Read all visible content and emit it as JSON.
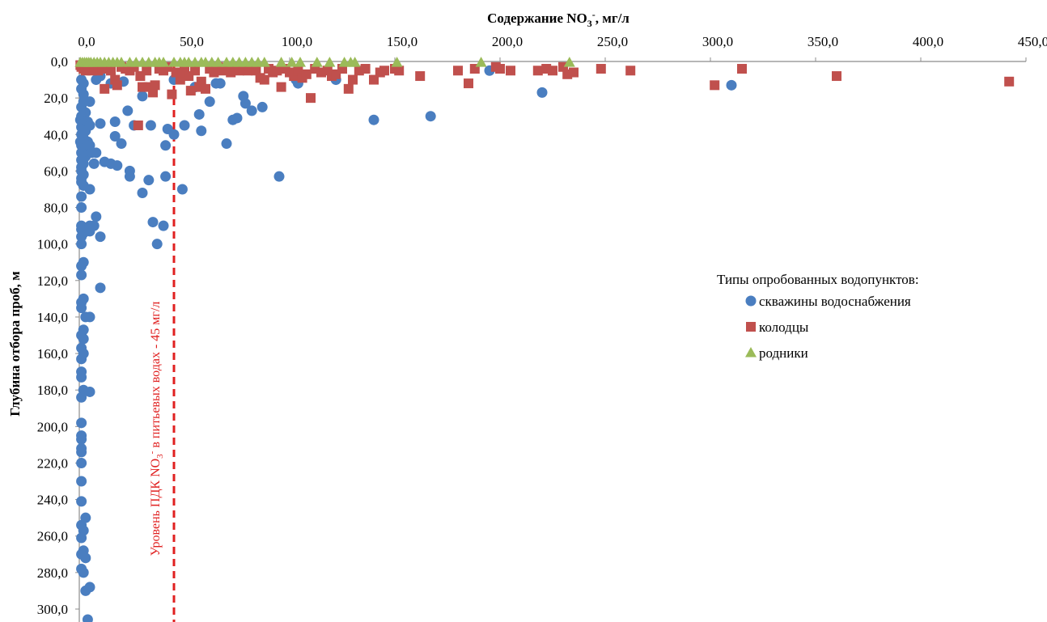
{
  "chart_data": {
    "type": "scatter",
    "title": "",
    "xlabel": {
      "main": "Содержание NO",
      "sub": "3",
      "sup": "-",
      "tail": ", мг/л"
    },
    "ylabel": "Глубина отбора проб, м",
    "xlim": [
      0,
      450
    ],
    "ylim": [
      0,
      305
    ],
    "y_inverted": true,
    "x_axis_position": "top",
    "grid": false,
    "x_ticks": [
      "0,0",
      "50,0",
      "100,0",
      "150,0",
      "200,0",
      "250,0",
      "300,0",
      "350,0",
      "400,0",
      "450,0"
    ],
    "y_ticks": [
      "0,0",
      "20,0",
      "40,0",
      "60,0",
      "80,0",
      "100,0",
      "120,0",
      "140,0",
      "160,0",
      "180,0",
      "200,0",
      "220,0",
      "240,0",
      "260,0",
      "280,0",
      "300,0"
    ],
    "legend": {
      "title": "Типы опробованных водопунктов:",
      "placement": "right",
      "entries": [
        {
          "label": "скважины водоснабжения",
          "marker": "circle",
          "color": "#4a7ec0"
        },
        {
          "label": "колодцы",
          "marker": "square",
          "color": "#c0504d"
        },
        {
          "label": "родники",
          "marker": "triangle",
          "color": "#9bbb59"
        }
      ]
    },
    "reference_line": {
      "x": 45,
      "label": {
        "pre": "Уровень ПДК NO",
        "sub": "3",
        "sup": "-",
        "post": " в питьевых водах - 45 мг/л"
      },
      "color": "#e02020"
    },
    "series": [
      {
        "name": "скважины водоснабжения",
        "marker": "circle",
        "color": "#4a7ec0",
        "points": [
          [
            1,
            10
          ],
          [
            2,
            12
          ],
          [
            1,
            15
          ],
          [
            2,
            18
          ],
          [
            2,
            22
          ],
          [
            1,
            25
          ],
          [
            3,
            28
          ],
          [
            1,
            30
          ],
          [
            0.5,
            32
          ],
          [
            2,
            34
          ],
          [
            1,
            36
          ],
          [
            3,
            38
          ],
          [
            1,
            40
          ],
          [
            2,
            42
          ],
          [
            0.5,
            44
          ],
          [
            1,
            46
          ],
          [
            2,
            48
          ],
          [
            1,
            50
          ],
          [
            3,
            52
          ],
          [
            1,
            54
          ],
          [
            2,
            56
          ],
          [
            1,
            58
          ],
          [
            1,
            60
          ],
          [
            2,
            62
          ],
          [
            1,
            64
          ],
          [
            1,
            66
          ],
          [
            2,
            68
          ],
          [
            1,
            74
          ],
          [
            1,
            80
          ],
          [
            1,
            90
          ],
          [
            1,
            92
          ],
          [
            2,
            94
          ],
          [
            1,
            96
          ],
          [
            1,
            100
          ],
          [
            2,
            110
          ],
          [
            1,
            112
          ],
          [
            1,
            117
          ],
          [
            2,
            130
          ],
          [
            1,
            132
          ],
          [
            1,
            135
          ],
          [
            3,
            140
          ],
          [
            2,
            147
          ],
          [
            1,
            150
          ],
          [
            2,
            152
          ],
          [
            1,
            157
          ],
          [
            2,
            160
          ],
          [
            1,
            163
          ],
          [
            1,
            170
          ],
          [
            1,
            173
          ],
          [
            2,
            180
          ],
          [
            1,
            184
          ],
          [
            1,
            198
          ],
          [
            1,
            205
          ],
          [
            1,
            207
          ],
          [
            1,
            212
          ],
          [
            1,
            214
          ],
          [
            1,
            220
          ],
          [
            1,
            230
          ],
          [
            1,
            241
          ],
          [
            3,
            250
          ],
          [
            1,
            254
          ],
          [
            2,
            257
          ],
          [
            1,
            261
          ],
          [
            2,
            268
          ],
          [
            1,
            270
          ],
          [
            3,
            272
          ],
          [
            1,
            278
          ],
          [
            2,
            280
          ],
          [
            5,
            288
          ],
          [
            3,
            290
          ],
          [
            4,
            306
          ],
          [
            5,
            22
          ],
          [
            4,
            33
          ],
          [
            5,
            35
          ],
          [
            4,
            44
          ],
          [
            5,
            46
          ],
          [
            6,
            50
          ],
          [
            5,
            70
          ],
          [
            5,
            90
          ],
          [
            5,
            93
          ],
          [
            8,
            10
          ],
          [
            10,
            8
          ],
          [
            7,
            56
          ],
          [
            8,
            50
          ],
          [
            10,
            34
          ],
          [
            8,
            85
          ],
          [
            10,
            96
          ],
          [
            7,
            90
          ],
          [
            10,
            124
          ],
          [
            5,
            140
          ],
          [
            5,
            181
          ],
          [
            12,
            55
          ],
          [
            15,
            56
          ],
          [
            18,
            57
          ],
          [
            15,
            12
          ],
          [
            17,
            41
          ],
          [
            17,
            33
          ],
          [
            20,
            45
          ],
          [
            21,
            11
          ],
          [
            23,
            27
          ],
          [
            24,
            60
          ],
          [
            24,
            63
          ],
          [
            26,
            35
          ],
          [
            30,
            19
          ],
          [
            30,
            72
          ],
          [
            33,
            65
          ],
          [
            34,
            35
          ],
          [
            35,
            88
          ],
          [
            37,
            100
          ],
          [
            40,
            90
          ],
          [
            41,
            63
          ],
          [
            41,
            46
          ],
          [
            42,
            37
          ],
          [
            45,
            40
          ],
          [
            45,
            10
          ],
          [
            49,
            70
          ],
          [
            50,
            35
          ],
          [
            55,
            14
          ],
          [
            57,
            29
          ],
          [
            58,
            38
          ],
          [
            62,
            22
          ],
          [
            65,
            12
          ],
          [
            67,
            12
          ],
          [
            70,
            45
          ],
          [
            73,
            32
          ],
          [
            75,
            31
          ],
          [
            78,
            19
          ],
          [
            79,
            23
          ],
          [
            82,
            27
          ],
          [
            87,
            25
          ],
          [
            95,
            63
          ],
          [
            103,
            10
          ],
          [
            104,
            12
          ],
          [
            122,
            10
          ],
          [
            140,
            32
          ],
          [
            167,
            30
          ],
          [
            195,
            5
          ],
          [
            220,
            17
          ],
          [
            310,
            13
          ]
        ]
      },
      {
        "name": "колодцы",
        "marker": "square",
        "color": "#c0504d",
        "points": [
          [
            0.5,
            2
          ],
          [
            1,
            3
          ],
          [
            2,
            4
          ],
          [
            3,
            5
          ],
          [
            4,
            3
          ],
          [
            5,
            4
          ],
          [
            6,
            5
          ],
          [
            7,
            3
          ],
          [
            8,
            4
          ],
          [
            9,
            5
          ],
          [
            10,
            3
          ],
          [
            11,
            4
          ],
          [
            12,
            15
          ],
          [
            14,
            3
          ],
          [
            15,
            5
          ],
          [
            17,
            10
          ],
          [
            18,
            13
          ],
          [
            20,
            3
          ],
          [
            22,
            4
          ],
          [
            24,
            5
          ],
          [
            26,
            3
          ],
          [
            28,
            35
          ],
          [
            29,
            8
          ],
          [
            30,
            14
          ],
          [
            32,
            5
          ],
          [
            33,
            14
          ],
          [
            35,
            17
          ],
          [
            36,
            13
          ],
          [
            38,
            4
          ],
          [
            40,
            5
          ],
          [
            42,
            3
          ],
          [
            44,
            18
          ],
          [
            46,
            6
          ],
          [
            48,
            10
          ],
          [
            49,
            6
          ],
          [
            50,
            4
          ],
          [
            52,
            8
          ],
          [
            53,
            16
          ],
          [
            55,
            5
          ],
          [
            57,
            14
          ],
          [
            58,
            11
          ],
          [
            60,
            15
          ],
          [
            62,
            4
          ],
          [
            64,
            6
          ],
          [
            66,
            3
          ],
          [
            68,
            5
          ],
          [
            70,
            4
          ],
          [
            72,
            6
          ],
          [
            74,
            3
          ],
          [
            76,
            5
          ],
          [
            78,
            4
          ],
          [
            80,
            5
          ],
          [
            82,
            3
          ],
          [
            84,
            5
          ],
          [
            86,
            9
          ],
          [
            88,
            10
          ],
          [
            90,
            4
          ],
          [
            92,
            6
          ],
          [
            94,
            5
          ],
          [
            96,
            14
          ],
          [
            98,
            4
          ],
          [
            100,
            6
          ],
          [
            102,
            8
          ],
          [
            104,
            5
          ],
          [
            106,
            9
          ],
          [
            108,
            7
          ],
          [
            110,
            20
          ],
          [
            112,
            4
          ],
          [
            115,
            6
          ],
          [
            118,
            5
          ],
          [
            120,
            8
          ],
          [
            122,
            7
          ],
          [
            125,
            4
          ],
          [
            128,
            15
          ],
          [
            130,
            10
          ],
          [
            133,
            5
          ],
          [
            136,
            4
          ],
          [
            140,
            10
          ],
          [
            143,
            6
          ],
          [
            145,
            5
          ],
          [
            150,
            4
          ],
          [
            152,
            5
          ],
          [
            162,
            8
          ],
          [
            180,
            5
          ],
          [
            185,
            12
          ],
          [
            188,
            4
          ],
          [
            198,
            3
          ],
          [
            200,
            4
          ],
          [
            205,
            5
          ],
          [
            218,
            5
          ],
          [
            222,
            4
          ],
          [
            225,
            5
          ],
          [
            230,
            3
          ],
          [
            232,
            7
          ],
          [
            235,
            6
          ],
          [
            248,
            4
          ],
          [
            262,
            5
          ],
          [
            302,
            13
          ],
          [
            315,
            4
          ],
          [
            360,
            8
          ],
          [
            442,
            11
          ]
        ]
      },
      {
        "name": "родники",
        "marker": "triangle",
        "color": "#9bbb59",
        "points": [
          [
            0.5,
            0.5
          ],
          [
            1.5,
            0.5
          ],
          [
            2.5,
            0.5
          ],
          [
            3.5,
            0.5
          ],
          [
            4.5,
            0.5
          ],
          [
            5.5,
            0.5
          ],
          [
            7,
            0.5
          ],
          [
            8.5,
            0.5
          ],
          [
            10,
            0.5
          ],
          [
            12,
            0.5
          ],
          [
            14,
            0.5
          ],
          [
            16,
            0.5
          ],
          [
            18,
            0.5
          ],
          [
            20,
            0.5
          ],
          [
            24,
            0.5
          ],
          [
            27,
            0.5
          ],
          [
            30,
            0.5
          ],
          [
            33,
            0.5
          ],
          [
            36,
            0.5
          ],
          [
            38,
            0.5
          ],
          [
            40,
            0.5
          ],
          [
            45,
            0.5
          ],
          [
            48,
            0.5
          ],
          [
            50,
            0.5
          ],
          [
            52,
            0.5
          ],
          [
            55,
            0.5
          ],
          [
            58,
            0.5
          ],
          [
            60,
            0.5
          ],
          [
            63,
            0.5
          ],
          [
            66,
            0.5
          ],
          [
            70,
            0.5
          ],
          [
            73,
            0.5
          ],
          [
            76,
            0.5
          ],
          [
            79,
            0.5
          ],
          [
            82,
            0.5
          ],
          [
            85,
            0.5
          ],
          [
            88,
            0.5
          ],
          [
            96,
            0.5
          ],
          [
            101,
            0.5
          ],
          [
            105,
            0.5
          ],
          [
            113,
            0.5
          ],
          [
            119,
            0.5
          ],
          [
            126,
            0.5
          ],
          [
            129,
            0.5
          ],
          [
            131,
            0.5
          ],
          [
            151,
            0.5
          ],
          [
            191,
            0.5
          ],
          [
            233,
            0.5
          ]
        ]
      }
    ]
  }
}
